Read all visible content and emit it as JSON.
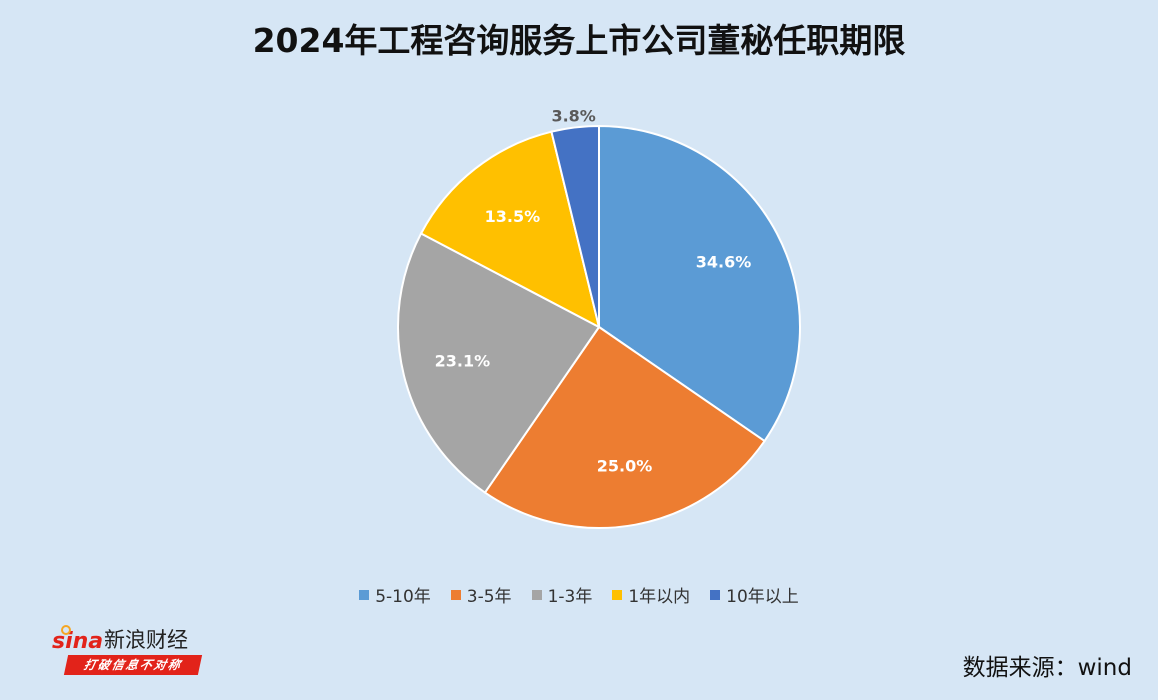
{
  "chart_data": {
    "type": "pie",
    "title": "2024年工程咨询服务上市公司董秘任职期限",
    "categories": [
      "5-10年",
      "3-5年",
      "1-3年",
      "1年以内",
      "10年以上"
    ],
    "values": [
      34.6,
      25.0,
      23.1,
      13.5,
      3.8
    ],
    "value_labels": [
      "34.6%",
      "25.0%",
      "23.1%",
      "13.5%",
      "3.8%"
    ],
    "colors": [
      "#5b9bd5",
      "#ed7d31",
      "#a5a5a5",
      "#ffc000",
      "#4472c4"
    ],
    "start_angle_deg": 0,
    "direction": "clockwise",
    "legend_placement": "bottom"
  },
  "watermark": {
    "brand": "新浪财经",
    "logo_text": "sina",
    "slogan": "打破信息不对称"
  },
  "source": "数据来源：wind"
}
